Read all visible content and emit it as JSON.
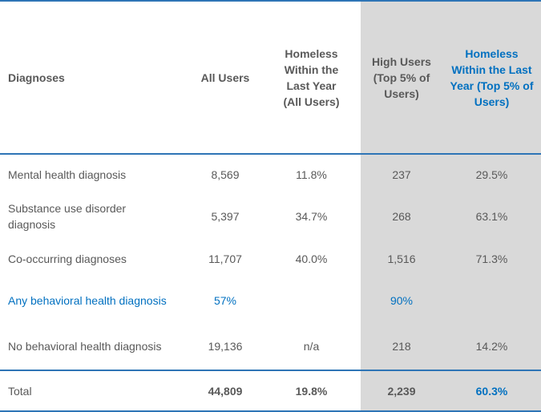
{
  "header": {
    "diagnoses": "Diagnoses",
    "all_users": "All Users",
    "homeless_all": "Homeless Within the Last Year (All Users)",
    "high_users": "High Users (Top 5% of Users)",
    "homeless_top": "Homeless Within the Last Year (Top 5% of Users)"
  },
  "rows": [
    {
      "label": "Mental health diagnosis",
      "all_users": "8,569",
      "homeless_all": "11.8%",
      "high_users": "237",
      "homeless_top": "29.5%"
    },
    {
      "label": "Substance use disorder diagnosis",
      "all_users": "5,397",
      "homeless_all": "34.7%",
      "high_users": "268",
      "homeless_top": "63.1%"
    },
    {
      "label": "Co-occurring diagnoses",
      "all_users": "11,707",
      "homeless_all": "40.0%",
      "high_users": "1,516",
      "homeless_top": "71.3%"
    },
    {
      "label": "Any behavioral health diagnosis",
      "all_users": "57%",
      "homeless_all": "",
      "high_users": "90%",
      "homeless_top": ""
    },
    {
      "label": "No behavioral health diagnosis",
      "all_users": "19,136",
      "homeless_all": "n/a",
      "high_users": "218",
      "homeless_top": "14.2%"
    }
  ],
  "total": {
    "label": "Total",
    "all_users": "44,809",
    "homeless_all": "19.8%",
    "high_users": "2,239",
    "homeless_top": "60.3%"
  },
  "colors": {
    "rule": "#2e75b6",
    "shade": "#d9d9d9",
    "accent_text": "#0070c0",
    "body_text": "#595959"
  }
}
